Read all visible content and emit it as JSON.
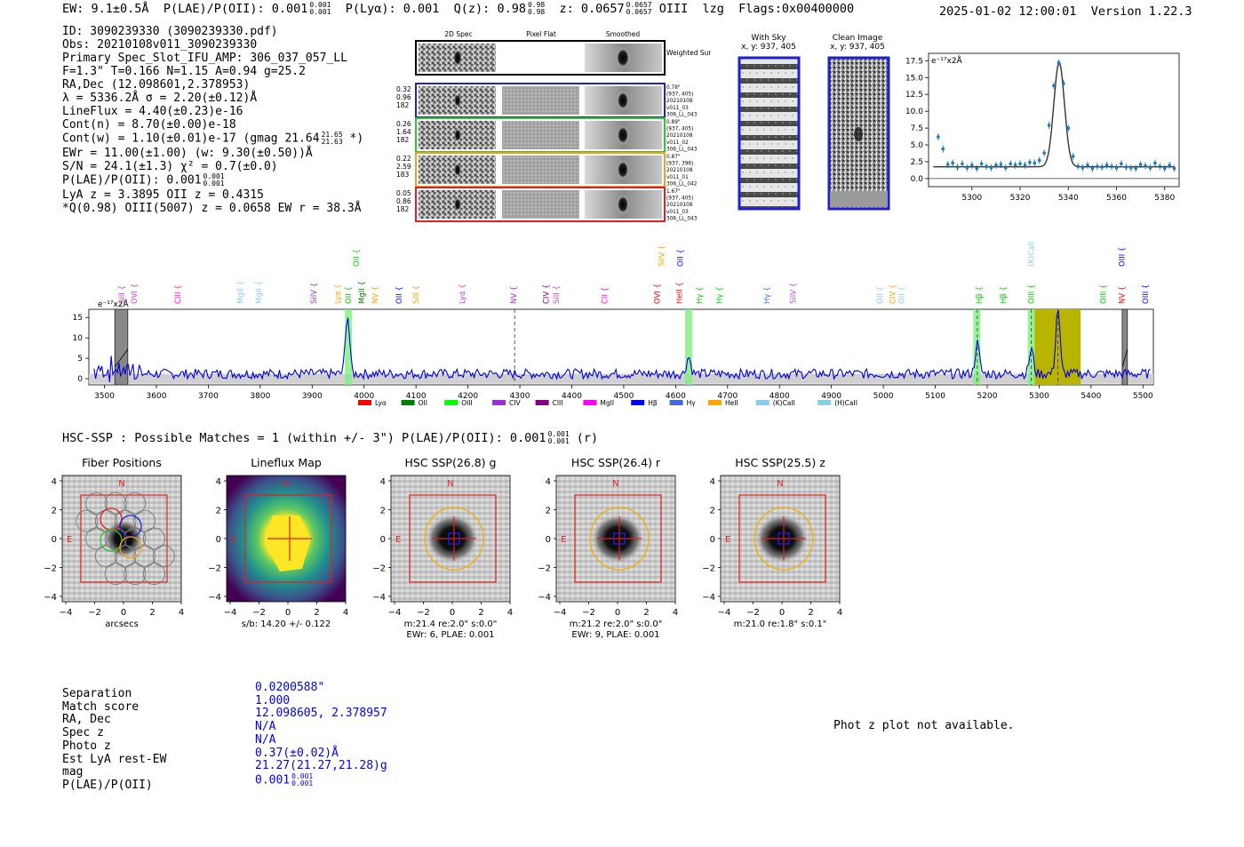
{
  "header": {
    "ew": "EW: 9.1±0.5Å",
    "plae_label": "P(LAE)/P(OII): 0.001",
    "plae_sup": "0.001",
    "plae_sub": "0.001",
    "plya": "P(Lyα): 0.001",
    "qz_label": "Q(z): 0.98",
    "qz_sup": "0.98",
    "qz_sub": "0.98",
    "z_label": "z: 0.0657",
    "z_sup": "0.0657",
    "z_sub": "0.0657",
    "line": "OIII",
    "lzg": "lzg",
    "flags": "Flags:0x00400000",
    "datetime": "2025-01-02 12:00:01",
    "version": "Version 1.22.3"
  },
  "info": {
    "id": "ID: 3090239330 (3090239330.pdf)",
    "obs": "Obs: 20210108v011_3090239330",
    "primary": "Primary Spec_Slot_IFU_AMP: 306_037_057_LL",
    "fwhm": "F=1.3\"  T=0.166  N=1.15  A=0.94  g=25.2",
    "radec": "RA,Dec (12.098601,2.378953)",
    "lambda": "λ = 5336.2Å  σ = 2.20(±0.12)Å",
    "lineflux": "LineFlux = 4.40(±0.23)e-16",
    "contn": "Cont(n) = 8.70(±0.00)e-18",
    "contw": "Cont(w) = 1.10(±0.01)e-17 (gmag 21.64",
    "contw_sup": "21.65",
    "contw_sub": "21.63",
    "contw_end": "*)",
    "ewr": "EWr = 11.00(±1.00) (w: 9.30(±0.50))Å",
    "sn": "S/N = 24.1(±1.3)  χ² = 0.7(±0.0)",
    "plae": "P(LAE)/P(OII): 0.001",
    "plae_sup": "0.001",
    "plae_sub": "0.001",
    "lyaz": "LyA z = 3.3895  OII z = 0.4315",
    "qline": "*Q(0.98) OIII(5007) z = 0.0658  EW r = 38.3Å"
  },
  "cutouts": {
    "col_labels": [
      "2D Spec",
      "Pixel Flat",
      "Smoothed"
    ],
    "weighted_label": "Weighted Sum",
    "rows": [
      {
        "left": [
          "0.32",
          "0.96",
          "182"
        ],
        "right": [
          "0.78\"",
          "(937, 405)",
          "20210108",
          "v011_03",
          "306_LL_043"
        ],
        "color": "#1f1fd0"
      },
      {
        "left": [
          "0.26",
          "1.64",
          "182"
        ],
        "right": [
          "0.89\"",
          "(937, 405)",
          "20210108",
          "v011_02",
          "306_LL_043"
        ],
        "color": "#2ec82e"
      },
      {
        "left": [
          "0.22",
          "2.59",
          "183"
        ],
        "right": [
          "0.87\"",
          "(937, 396)",
          "20210108",
          "v011_01",
          "306_LL_042"
        ],
        "color": "#f0a020"
      },
      {
        "left": [
          "0.05",
          "0.86",
          "182"
        ],
        "right": [
          "1.67\"",
          "(937, 405)",
          "20210108",
          "v011_03",
          "306_LL_043"
        ],
        "color": "#e02020"
      }
    ]
  },
  "sky": {
    "with_sky_title": "With Sky",
    "with_sky_coords": "x, y: 937, 405",
    "clean_title": "Clean Image",
    "clean_coords": "x, y: 937, 405"
  },
  "fit_plot": {
    "unit_label": "e⁻¹⁷x2Å",
    "yticks": [
      "17.5",
      "15.0",
      "12.5",
      "10.0",
      "7.5",
      "5.0",
      "2.5",
      "0.0"
    ],
    "xticks": [
      "5300",
      "5320",
      "5340",
      "5360",
      "5380"
    ]
  },
  "chart_data": [
    {
      "type": "scatter",
      "title": "",
      "xlabel": "",
      "ylabel": "e-17x2Å",
      "xlim": [
        5282,
        5386
      ],
      "ylim": [
        -1.2,
        18.6
      ],
      "points_x": [
        5286,
        5288,
        5290,
        5292,
        5294,
        5296,
        5298,
        5300,
        5302,
        5304,
        5306,
        5308,
        5310,
        5312,
        5314,
        5316,
        5318,
        5320,
        5322,
        5324,
        5326,
        5328,
        5330,
        5332,
        5334,
        5336,
        5338,
        5340,
        5342,
        5344,
        5346,
        5348,
        5350,
        5352,
        5354,
        5356,
        5358,
        5360,
        5362,
        5364,
        5366,
        5368,
        5370,
        5372,
        5374,
        5376,
        5378,
        5380,
        5382,
        5384
      ],
      "points_y": [
        6.2,
        4.4,
        2.1,
        2.3,
        1.7,
        2.2,
        1.6,
        2.0,
        1.5,
        2.2,
        1.8,
        1.6,
        2.0,
        2.1,
        1.6,
        2.2,
        2.0,
        2.2,
        2.0,
        2.4,
        2.3,
        2.7,
        3.8,
        7.9,
        13.8,
        17.2,
        14.1,
        7.5,
        3.3,
        1.8,
        1.6,
        2.0,
        1.5,
        1.8,
        1.7,
        2.0,
        1.8,
        1.6,
        2.2,
        1.7,
        1.6,
        1.5,
        2.1,
        1.9,
        1.6,
        2.3,
        1.8,
        1.5,
        2.0,
        1.5
      ],
      "fit": {
        "continuum": 1.75,
        "peak": 17.3,
        "center": 5336.2,
        "sigma": 2.2
      }
    },
    {
      "type": "line",
      "title": "",
      "unit_label": "e⁻¹⁷x2Å",
      "xlim": [
        3470,
        5520
      ],
      "ylim": [
        -1.5,
        17
      ],
      "xticks": [
        "3500",
        "3600",
        "3700",
        "3800",
        "3900",
        "4000",
        "4100",
        "4200",
        "4300",
        "4400",
        "4500",
        "4600",
        "4700",
        "4800",
        "4900",
        "5000",
        "5100",
        "5200",
        "5300",
        "5400",
        "5500"
      ],
      "yticks": [
        "15",
        "10",
        "5",
        "0"
      ],
      "peaks": [
        {
          "x": 3968,
          "y": 14.5
        },
        {
          "x": 4625,
          "y": 4.2
        },
        {
          "x": 5181,
          "y": 7.5
        },
        {
          "x": 5285,
          "y": 6.0
        },
        {
          "x": 5336,
          "y": 16.2
        }
      ],
      "shaded_lines": [
        3970,
        4625,
        5180,
        5285
      ],
      "highlight_band": [
        5290,
        5380
      ],
      "masked_bands": [
        [
          3520,
          3545
        ],
        [
          5460,
          5470
        ]
      ],
      "dashed_marker": 4290,
      "line_labels": [
        {
          "label": "SiII",
          "x": 3533,
          "color": "#cc44cc",
          "row": 0
        },
        {
          "label": "OVI",
          "x": 3557,
          "color": "#cc44cc",
          "row": 0
        },
        {
          "label": "CIII",
          "x": 3641,
          "color": "#ff00ff",
          "row": 0
        },
        {
          "label": "MgII",
          "x": 3762,
          "color": "#87ceeb",
          "row": 0
        },
        {
          "label": "MgII",
          "x": 3797,
          "color": "#87ceeb",
          "row": 0
        },
        {
          "label": "SiIV",
          "x": 3903,
          "color": "#9932cc",
          "row": 0
        },
        {
          "label": "Lyα",
          "x": 3949,
          "color": "#ffa500",
          "row": 0
        },
        {
          "label": "OII",
          "x": 3970,
          "color": "#00cc00",
          "row": 0
        },
        {
          "label": "OII",
          "x": 3985,
          "color": "#00cc00",
          "row": 1
        },
        {
          "label": "MgII",
          "x": 3995,
          "color": "#008000",
          "row": 0
        },
        {
          "label": "NV",
          "x": 4021,
          "color": "#ffa500",
          "row": 0
        },
        {
          "label": "OII",
          "x": 4067,
          "color": "#0000ff",
          "row": 0
        },
        {
          "label": "SiII",
          "x": 4100,
          "color": "#ffa500",
          "row": 0
        },
        {
          "label": "Lyα",
          "x": 4189,
          "color": "#cc44cc",
          "row": 0
        },
        {
          "label": "NV",
          "x": 4288,
          "color": "#9932cc",
          "row": 0
        },
        {
          "label": "CIV",
          "x": 4350,
          "color": "#800080",
          "row": 0
        },
        {
          "label": "SiII",
          "x": 4370,
          "color": "#cc44cc",
          "row": 0
        },
        {
          "label": "CII",
          "x": 4463,
          "color": "#ff00ff",
          "row": 0
        },
        {
          "label": "OVI",
          "x": 4564,
          "color": "#ff0000",
          "row": 0
        },
        {
          "label": "SiIV",
          "x": 4573,
          "color": "#ffa500",
          "row": 1
        },
        {
          "label": "OII",
          "x": 4609,
          "color": "#0000ff",
          "row": 1
        },
        {
          "label": "HeII",
          "x": 4607,
          "color": "#ff0000",
          "row": 0
        },
        {
          "label": "Hγ",
          "x": 4646,
          "color": "#00cc00",
          "row": 0
        },
        {
          "label": "Hγ",
          "x": 4684,
          "color": "#00cc00",
          "row": 0
        },
        {
          "label": "Hγ",
          "x": 4776,
          "color": "#4169e1",
          "row": 0
        },
        {
          "label": "SiIV",
          "x": 4826,
          "color": "#cc44cc",
          "row": 0
        },
        {
          "label": "OII",
          "x": 4993,
          "color": "#87ceeb",
          "row": 0
        },
        {
          "label": "CIV",
          "x": 5018,
          "color": "#ffa500",
          "row": 0
        },
        {
          "label": "OII",
          "x": 5035,
          "color": "#87ceeb",
          "row": 0
        },
        {
          "label": "Hβ",
          "x": 5185,
          "color": "#00cc00",
          "row": 0
        },
        {
          "label": "Hβ",
          "x": 5231,
          "color": "#00cc00",
          "row": 0
        },
        {
          "label": "(K)CaII",
          "x": 5285,
          "color": "#87ceeb",
          "row": 1
        },
        {
          "label": "OIII",
          "x": 5285,
          "color": "#00cc00",
          "row": 0
        },
        {
          "label": "OIII",
          "x": 5423,
          "color": "#00cc00",
          "row": 0
        },
        {
          "label": "OIII",
          "x": 5459,
          "color": "#0000ff",
          "row": 1
        },
        {
          "label": "NV",
          "x": 5459,
          "color": "#ff0000",
          "row": 0
        },
        {
          "label": "OIII",
          "x": 5505,
          "color": "#0000ff",
          "row": 0
        }
      ],
      "legend": [
        {
          "label": "Lyα",
          "color": "#ff0000"
        },
        {
          "label": "OII",
          "color": "#008000"
        },
        {
          "label": "OIII",
          "color": "#00ff00"
        },
        {
          "label": "CIV",
          "color": "#9932cc"
        },
        {
          "label": "CIII",
          "color": "#800080"
        },
        {
          "label": "MgII",
          "color": "#ff00ff"
        },
        {
          "label": "Hβ",
          "color": "#0000ff"
        },
        {
          "label": "Hγ",
          "color": "#4169e1"
        },
        {
          "label": "HeII",
          "color": "#ffa500"
        },
        {
          "label": "(K)CaII",
          "color": "#87ceeb"
        },
        {
          "label": "(H)CaII",
          "color": "#87ceeb"
        }
      ]
    }
  ],
  "hsc": {
    "line": "HSC-SSP : Possible Matches = 1 (within +/- 3\")  P(LAE)/P(OII): 0.001",
    "sup": "0.001",
    "sub": "0.001",
    "filter": "(r)"
  },
  "imaging": {
    "panels": [
      {
        "title": "Fiber Positions",
        "caption1": "arcsecs",
        "caption2": ""
      },
      {
        "title": "Lineflux Map",
        "caption1": "s/b: 14.20 +/- 0.122",
        "caption2": ""
      },
      {
        "title": "HSC SSP(26.8) g",
        "caption1": "m:21.4  re:2.0\"  s:0.0\"",
        "caption2": "EWr: 6, PLAE: 0.001"
      },
      {
        "title": "HSC SSP(26.4) r",
        "caption1": "m:21.2  re:2.0\"  s:0.0\"",
        "caption2": "EWr: 9, PLAE: 0.001"
      },
      {
        "title": "HSC SSP(25.5) z",
        "caption1": "m:21.0  re:1.8\"  s:0.1\"",
        "caption2": ""
      }
    ],
    "yticks": [
      "4",
      "2",
      "0",
      "−2",
      "−4"
    ],
    "xticks": [
      "−4",
      "−2",
      "0",
      "2",
      "4"
    ],
    "north": "N",
    "east": "E"
  },
  "match_table": {
    "rows": [
      {
        "label": "Separation",
        "value": "0.0200588\""
      },
      {
        "label": "Match score",
        "value": "1.000"
      },
      {
        "label": "RA, Dec",
        "value": "12.098605, 2.378957"
      },
      {
        "label": "Spec z",
        "value": "N/A"
      },
      {
        "label": "Photo z",
        "value": "N/A"
      },
      {
        "label": "Est LyA rest-EW",
        "value": "0.37(±0.02)Å"
      },
      {
        "label": "mag",
        "value": "21.27(21.27,21.28)g"
      },
      {
        "label": "P(LAE)/P(OII)",
        "value": "0.001"
      }
    ],
    "plae_sup": "0.001",
    "plae_sub": "0.001"
  },
  "photz": {
    "message": "Phot z plot not available."
  }
}
